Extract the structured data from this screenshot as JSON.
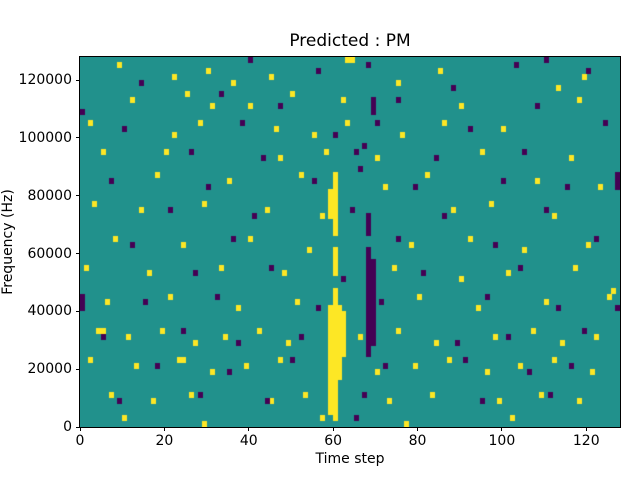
{
  "chart_data": {
    "type": "heatmap",
    "title": "Predicted : PM",
    "xlabel": "Time step",
    "ylabel": "Frequency (Hz)",
    "x_range": [
      0,
      128
    ],
    "y_range": [
      0,
      128000
    ],
    "x_ticks": [
      0,
      20,
      40,
      60,
      80,
      100,
      120
    ],
    "y_ticks": [
      0,
      20000,
      40000,
      60000,
      80000,
      100000,
      120000
    ],
    "grid": {
      "cols": 128,
      "rows": 64,
      "hz_per_row": 2000,
      "gridlines": false
    },
    "legend": {
      "visible": false
    },
    "colors": {
      "background": "#21918c",
      "high": "#fde725",
      "low": "#440154"
    },
    "cells": {
      "yellow": [
        [
          9,
          62
        ],
        [
          22,
          60
        ],
        [
          30,
          61
        ],
        [
          36,
          59
        ],
        [
          63,
          63
        ],
        [
          64,
          63
        ],
        [
          85,
          61
        ],
        [
          119,
          60
        ],
        [
          113,
          58
        ],
        [
          45,
          60
        ],
        [
          75,
          59
        ],
        [
          12,
          56
        ],
        [
          25,
          57
        ],
        [
          31,
          55
        ],
        [
          50,
          57
        ],
        [
          62,
          56
        ],
        [
          90,
          55
        ],
        [
          118,
          56
        ],
        [
          40,
          55
        ],
        [
          2,
          52
        ],
        [
          28,
          52
        ],
        [
          46,
          51
        ],
        [
          55,
          50
        ],
        [
          63,
          52
        ],
        [
          76,
          50
        ],
        [
          86,
          52
        ],
        [
          100,
          51
        ],
        [
          22,
          50
        ],
        [
          5,
          47
        ],
        [
          20,
          47
        ],
        [
          47,
          46
        ],
        [
          58,
          47
        ],
        [
          70,
          46
        ],
        [
          95,
          47
        ],
        [
          116,
          46
        ],
        [
          18,
          43
        ],
        [
          35,
          42
        ],
        [
          52,
          43
        ],
        [
          72,
          41
        ],
        [
          82,
          43
        ],
        [
          108,
          42
        ],
        [
          123,
          41
        ],
        [
          3,
          38
        ],
        [
          14,
          37
        ],
        [
          29,
          38
        ],
        [
          44,
          37
        ],
        [
          57,
          36
        ],
        [
          88,
          37
        ],
        [
          97,
          38
        ],
        [
          112,
          36
        ],
        [
          8,
          32
        ],
        [
          24,
          31
        ],
        [
          40,
          32
        ],
        [
          54,
          30
        ],
        [
          78,
          31
        ],
        [
          92,
          32
        ],
        [
          105,
          30
        ],
        [
          120,
          31
        ],
        [
          1,
          27
        ],
        [
          16,
          26
        ],
        [
          33,
          27
        ],
        [
          48,
          26
        ],
        [
          74,
          27
        ],
        [
          90,
          25
        ],
        [
          101,
          26
        ],
        [
          117,
          27
        ],
        [
          126,
          23
        ],
        [
          6,
          21
        ],
        [
          21,
          22
        ],
        [
          37,
          20
        ],
        [
          51,
          21
        ],
        [
          80,
          22
        ],
        [
          94,
          20
        ],
        [
          110,
          21
        ],
        [
          125,
          22
        ],
        [
          4,
          16
        ],
        [
          5,
          16
        ],
        [
          11,
          15
        ],
        [
          19,
          16
        ],
        [
          27,
          14
        ],
        [
          34,
          15
        ],
        [
          42,
          16
        ],
        [
          49,
          14
        ],
        [
          66,
          15
        ],
        [
          75,
          16
        ],
        [
          84,
          14
        ],
        [
          98,
          15
        ],
        [
          107,
          16
        ],
        [
          114,
          14
        ],
        [
          122,
          15
        ],
        [
          2,
          11
        ],
        [
          13,
          10
        ],
        [
          23,
          11
        ],
        [
          24,
          11
        ],
        [
          31,
          9
        ],
        [
          39,
          10
        ],
        [
          47,
          11
        ],
        [
          70,
          9
        ],
        [
          79,
          10
        ],
        [
          87,
          11
        ],
        [
          96,
          9
        ],
        [
          104,
          10
        ],
        [
          112,
          11
        ],
        [
          121,
          9
        ],
        [
          7,
          5
        ],
        [
          17,
          4
        ],
        [
          26,
          5
        ],
        [
          45,
          4
        ],
        [
          53,
          5
        ],
        [
          73,
          4
        ],
        [
          83,
          5
        ],
        [
          99,
          4
        ],
        [
          109,
          5
        ],
        [
          118,
          4
        ],
        [
          10,
          1
        ],
        [
          29,
          0
        ],
        [
          57,
          1
        ],
        [
          77,
          0
        ],
        [
          102,
          1
        ]
      ],
      "purple": [
        [
          40,
          63
        ],
        [
          68,
          62
        ],
        [
          103,
          62
        ],
        [
          110,
          63
        ],
        [
          56,
          61
        ],
        [
          14,
          59
        ],
        [
          88,
          58
        ],
        [
          120,
          61
        ],
        [
          33,
          57
        ],
        [
          47,
          55
        ],
        [
          75,
          56
        ],
        [
          108,
          55
        ],
        [
          0,
          54
        ],
        [
          10,
          51
        ],
        [
          38,
          52
        ],
        [
          60,
          50
        ],
        [
          92,
          51
        ],
        [
          124,
          52
        ],
        [
          26,
          47
        ],
        [
          43,
          46
        ],
        [
          65,
          47
        ],
        [
          84,
          46
        ],
        [
          105,
          47
        ],
        [
          67,
          48
        ],
        [
          7,
          42
        ],
        [
          30,
          41
        ],
        [
          55,
          42
        ],
        [
          79,
          41
        ],
        [
          100,
          42
        ],
        [
          115,
          41
        ],
        [
          21,
          37
        ],
        [
          41,
          36
        ],
        [
          64,
          37
        ],
        [
          86,
          36
        ],
        [
          110,
          37
        ],
        [
          66,
          44
        ],
        [
          70,
          52
        ],
        [
          12,
          31
        ],
        [
          36,
          32
        ],
        [
          75,
          32
        ],
        [
          98,
          31
        ],
        [
          122,
          32
        ],
        [
          127,
          20
        ],
        [
          27,
          26
        ],
        [
          45,
          27
        ],
        [
          62,
          25
        ],
        [
          81,
          26
        ],
        [
          104,
          27
        ],
        [
          15,
          21
        ],
        [
          32,
          22
        ],
        [
          56,
          20
        ],
        [
          71,
          21
        ],
        [
          96,
          22
        ],
        [
          113,
          20
        ],
        [
          5,
          15
        ],
        [
          24,
          16
        ],
        [
          37,
          14
        ],
        [
          52,
          15
        ],
        [
          89,
          14
        ],
        [
          101,
          15
        ],
        [
          119,
          16
        ],
        [
          18,
          10
        ],
        [
          35,
          9
        ],
        [
          50,
          11
        ],
        [
          72,
          10
        ],
        [
          91,
          11
        ],
        [
          106,
          9
        ],
        [
          116,
          10
        ],
        [
          9,
          4
        ],
        [
          28,
          5
        ],
        [
          44,
          4
        ],
        [
          67,
          5
        ],
        [
          95,
          4
        ],
        [
          111,
          5
        ],
        [
          65,
          1
        ]
      ],
      "yellow_runs": [
        {
          "x": 59,
          "r0": 2,
          "r1": 20
        },
        {
          "x": 60,
          "r0": 1,
          "r1": 23
        },
        {
          "x": 61,
          "r0": 8,
          "r1": 20
        },
        {
          "x": 62,
          "r0": 12,
          "r1": 19
        },
        {
          "x": 60,
          "r0": 26,
          "r1": 30
        },
        {
          "x": 60,
          "r0": 33,
          "r1": 43
        },
        {
          "x": 59,
          "r0": 36,
          "r1": 40
        }
      ],
      "purple_runs": [
        {
          "x": 68,
          "r0": 12,
          "r1": 30
        },
        {
          "x": 69,
          "r0": 14,
          "r1": 28
        },
        {
          "x": 68,
          "r0": 33,
          "r1": 36
        },
        {
          "x": 0,
          "r0": 20,
          "r1": 22
        },
        {
          "x": 127,
          "r0": 41,
          "r1": 43
        },
        {
          "x": 69,
          "r0": 54,
          "r1": 56
        }
      ]
    }
  }
}
